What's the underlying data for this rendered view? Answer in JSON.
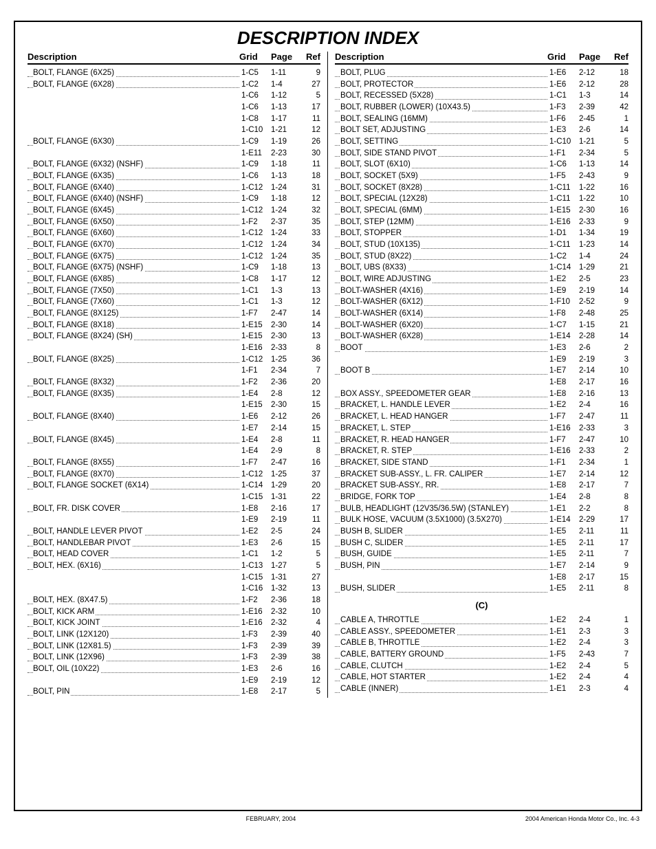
{
  "title": "DESCRIPTION INDEX",
  "headers": {
    "desc": "Description",
    "grid": "Grid",
    "page": "Page",
    "ref": "Ref"
  },
  "footer": {
    "center": "FEBRUARY, 2004",
    "right": "2004  American Honda Motor Co., Inc.    4-3"
  },
  "left": [
    {
      "d": "BOLT, FLANGE (6X25)",
      "g": "1-C5",
      "p": "1-11",
      "r": "9"
    },
    {
      "d": "BOLT, FLANGE (6X28)",
      "g": "1-C2",
      "p": "1-4",
      "r": "27"
    },
    {
      "d": "",
      "g": "1-C6",
      "p": "1-12",
      "r": "5"
    },
    {
      "d": "",
      "g": "1-C6",
      "p": "1-13",
      "r": "17"
    },
    {
      "d": "",
      "g": "1-C8",
      "p": "1-17",
      "r": "11"
    },
    {
      "d": "",
      "g": "1-C10",
      "p": "1-21",
      "r": "12"
    },
    {
      "d": "BOLT, FLANGE (6X30)",
      "g": "1-C9",
      "p": "1-19",
      "r": "26"
    },
    {
      "d": "",
      "g": "1-E11",
      "p": "2-23",
      "r": "30"
    },
    {
      "d": "BOLT, FLANGE (6X32) (NSHF)",
      "g": "1-C9",
      "p": "1-18",
      "r": "11"
    },
    {
      "d": "BOLT, FLANGE (6X35)",
      "g": "1-C6",
      "p": "1-13",
      "r": "18"
    },
    {
      "d": "BOLT, FLANGE (6X40)",
      "g": "1-C12",
      "p": "1-24",
      "r": "31"
    },
    {
      "d": "BOLT, FLANGE (6X40) (NSHF)",
      "g": "1-C9",
      "p": "1-18",
      "r": "12"
    },
    {
      "d": "BOLT, FLANGE (6X45)",
      "g": "1-C12",
      "p": "1-24",
      "r": "32"
    },
    {
      "d": "BOLT, FLANGE (6X50)",
      "g": "1-F2",
      "p": "2-37",
      "r": "35"
    },
    {
      "d": "BOLT, FLANGE (6X60)",
      "g": "1-C12",
      "p": "1-24",
      "r": "33"
    },
    {
      "d": "BOLT, FLANGE (6X70)",
      "g": "1-C12",
      "p": "1-24",
      "r": "34"
    },
    {
      "d": "BOLT, FLANGE (6X75)",
      "g": "1-C12",
      "p": "1-24",
      "r": "35"
    },
    {
      "d": "BOLT, FLANGE (6X75) (NSHF)",
      "g": "1-C9",
      "p": "1-18",
      "r": "13"
    },
    {
      "d": "BOLT, FLANGE (6X85)",
      "g": "1-C8",
      "p": "1-17",
      "r": "12"
    },
    {
      "d": "BOLT, FLANGE (7X50)",
      "g": "1-C1",
      "p": "1-3",
      "r": "13"
    },
    {
      "d": "BOLT, FLANGE (7X60)",
      "g": "1-C1",
      "p": "1-3",
      "r": "12"
    },
    {
      "d": "BOLT, FLANGE (8X125)",
      "g": "1-F7",
      "p": "2-47",
      "r": "14"
    },
    {
      "d": "BOLT, FLANGE (8X18)",
      "g": "1-E15",
      "p": "2-30",
      "r": "14"
    },
    {
      "d": "BOLT, FLANGE (8X24) (SH)",
      "g": "1-E15",
      "p": "2-30",
      "r": "13"
    },
    {
      "d": "",
      "g": "1-E16",
      "p": "2-33",
      "r": "8"
    },
    {
      "d": "BOLT, FLANGE (8X25)",
      "g": "1-C12",
      "p": "1-25",
      "r": "36"
    },
    {
      "d": "",
      "g": "1-F1",
      "p": "2-34",
      "r": "7"
    },
    {
      "d": "BOLT, FLANGE (8X32)",
      "g": "1-F2",
      "p": "2-36",
      "r": "20"
    },
    {
      "d": "BOLT, FLANGE (8X35)",
      "g": "1-E4",
      "p": "2-8",
      "r": "12"
    },
    {
      "d": "",
      "g": "1-E15",
      "p": "2-30",
      "r": "15"
    },
    {
      "d": "BOLT, FLANGE (8X40)",
      "g": "1-E6",
      "p": "2-12",
      "r": "26"
    },
    {
      "d": "",
      "g": "1-E7",
      "p": "2-14",
      "r": "15"
    },
    {
      "d": "BOLT, FLANGE (8X45)",
      "g": "1-E4",
      "p": "2-8",
      "r": "11"
    },
    {
      "d": "",
      "g": "1-E4",
      "p": "2-9",
      "r": "8"
    },
    {
      "d": "BOLT, FLANGE (8X55)",
      "g": "1-F7",
      "p": "2-47",
      "r": "16"
    },
    {
      "d": "BOLT, FLANGE (8X70)",
      "g": "1-C12",
      "p": "1-25",
      "r": "37"
    },
    {
      "d": "BOLT, FLANGE SOCKET (6X14)",
      "g": "1-C14",
      "p": "1-29",
      "r": "20"
    },
    {
      "d": "",
      "g": "1-C15",
      "p": "1-31",
      "r": "22"
    },
    {
      "d": "BOLT, FR. DISK COVER",
      "g": "1-E8",
      "p": "2-16",
      "r": "17"
    },
    {
      "d": "",
      "g": "1-E9",
      "p": "2-19",
      "r": "11"
    },
    {
      "d": "BOLT, HANDLE LEVER PIVOT",
      "g": "1-E2",
      "p": "2-5",
      "r": "24"
    },
    {
      "d": "BOLT, HANDLEBAR PIVOT",
      "g": "1-E3",
      "p": "2-6",
      "r": "15"
    },
    {
      "d": "BOLT, HEAD COVER",
      "g": "1-C1",
      "p": "1-2",
      "r": "5"
    },
    {
      "d": "BOLT, HEX. (6X16)",
      "g": "1-C13",
      "p": "1-27",
      "r": "5"
    },
    {
      "d": "",
      "g": "1-C15",
      "p": "1-31",
      "r": "27"
    },
    {
      "d": "",
      "g": "1-C16",
      "p": "1-32",
      "r": "13"
    },
    {
      "d": "BOLT, HEX. (8X47.5)",
      "g": "1-F2",
      "p": "2-36",
      "r": "18"
    },
    {
      "d": "BOLT, KICK ARM",
      "g": "1-E16",
      "p": "2-32",
      "r": "10"
    },
    {
      "d": "BOLT, KICK JOINT",
      "g": "1-E16",
      "p": "2-32",
      "r": "4"
    },
    {
      "d": "BOLT, LINK (12X120)",
      "g": "1-F3",
      "p": "2-39",
      "r": "40"
    },
    {
      "d": "BOLT, LINK (12X81.5)",
      "g": "1-F3",
      "p": "2-39",
      "r": "39"
    },
    {
      "d": "BOLT, LINK (12X96)",
      "g": "1-F3",
      "p": "2-39",
      "r": "38"
    },
    {
      "d": "BOLT, OIL (10X22)",
      "g": "1-E3",
      "p": "2-6",
      "r": "16"
    },
    {
      "d": "",
      "g": "1-E9",
      "p": "2-19",
      "r": "12"
    },
    {
      "d": "BOLT, PIN",
      "g": "1-E8",
      "p": "2-17",
      "r": "5"
    }
  ],
  "right": [
    {
      "d": "BOLT, PLUG",
      "g": "1-E6",
      "p": "2-12",
      "r": "18"
    },
    {
      "d": "BOLT, PROTECTOR",
      "g": "1-E6",
      "p": "2-12",
      "r": "28"
    },
    {
      "d": "BOLT, RECESSED (5X28)",
      "g": "1-C1",
      "p": "1-3",
      "r": "14"
    },
    {
      "d": "BOLT, RUBBER (LOWER) (10X43.5)",
      "g": "1-F3",
      "p": "2-39",
      "r": "42"
    },
    {
      "d": "BOLT, SEALING (16MM)",
      "g": "1-F6",
      "p": "2-45",
      "r": "1"
    },
    {
      "d": "BOLT SET, ADJUSTING",
      "g": "1-E3",
      "p": "2-6",
      "r": "14"
    },
    {
      "d": "BOLT, SETTING",
      "g": "1-C10",
      "p": "1-21",
      "r": "5"
    },
    {
      "d": "BOLT, SIDE STAND PIVOT",
      "g": "1-F1",
      "p": "2-34",
      "r": "5"
    },
    {
      "d": "BOLT, SLOT (6X10)",
      "g": "1-C6",
      "p": "1-13",
      "r": "14"
    },
    {
      "d": "BOLT, SOCKET (5X9)",
      "g": "1-F5",
      "p": "2-43",
      "r": "9"
    },
    {
      "d": "BOLT, SOCKET (8X28)",
      "g": "1-C11",
      "p": "1-22",
      "r": "16"
    },
    {
      "d": "BOLT, SPECIAL (12X28)",
      "g": "1-C11",
      "p": "1-22",
      "r": "10"
    },
    {
      "d": "BOLT, SPECIAL (6MM)",
      "g": "1-E15",
      "p": "2-30",
      "r": "16"
    },
    {
      "d": "BOLT, STEP (12MM)",
      "g": "1-E16",
      "p": "2-33",
      "r": "9"
    },
    {
      "d": "BOLT, STOPPER",
      "g": "1-D1",
      "p": "1-34",
      "r": "19"
    },
    {
      "d": "BOLT, STUD (10X135)",
      "g": "1-C11",
      "p": "1-23",
      "r": "14"
    },
    {
      "d": "BOLT, STUD (8X22)",
      "g": "1-C2",
      "p": "1-4",
      "r": "24"
    },
    {
      "d": "BOLT, UBS (8X33)",
      "g": "1-C14",
      "p": "1-29",
      "r": "21"
    },
    {
      "d": "BOLT, WIRE ADJUSTING",
      "g": "1-E2",
      "p": "2-5",
      "r": "23"
    },
    {
      "d": "BOLT-WASHER (4X16)",
      "g": "1-E9",
      "p": "2-19",
      "r": "14"
    },
    {
      "d": "BOLT-WASHER (6X12)",
      "g": "1-F10",
      "p": "2-52",
      "r": "9"
    },
    {
      "d": "BOLT-WASHER (6X14)",
      "g": "1-F8",
      "p": "2-48",
      "r": "25"
    },
    {
      "d": "BOLT-WASHER (6X20)",
      "g": "1-C7",
      "p": "1-15",
      "r": "21"
    },
    {
      "d": "BOLT-WASHER (6X28)",
      "g": "1-E14",
      "p": "2-28",
      "r": "14"
    },
    {
      "d": "BOOT",
      "g": "1-E3",
      "p": "2-6",
      "r": "2"
    },
    {
      "d": "",
      "g": "1-E9",
      "p": "2-19",
      "r": "3"
    },
    {
      "d": "BOOT B",
      "g": "1-E7",
      "p": "2-14",
      "r": "10"
    },
    {
      "d": "",
      "g": "1-E8",
      "p": "2-17",
      "r": "16"
    },
    {
      "d": "BOX ASSY., SPEEDOMETER GEAR",
      "g": "1-E8",
      "p": "2-16",
      "r": "13"
    },
    {
      "d": "BRACKET, L. HANDLE LEVER",
      "g": "1-E2",
      "p": "2-4",
      "r": "16"
    },
    {
      "d": "BRACKET, L. HEAD HANGER",
      "g": "1-F7",
      "p": "2-47",
      "r": "11"
    },
    {
      "d": "BRACKET, L. STEP",
      "g": "1-E16",
      "p": "2-33",
      "r": "3"
    },
    {
      "d": "BRACKET, R. HEAD HANGER",
      "g": "1-F7",
      "p": "2-47",
      "r": "10"
    },
    {
      "d": "BRACKET, R. STEP",
      "g": "1-E16",
      "p": "2-33",
      "r": "2"
    },
    {
      "d": "BRACKET, SIDE STAND",
      "g": "1-F1",
      "p": "2-34",
      "r": "1"
    },
    {
      "d": "BRACKET SUB-ASSY., L. FR. CALIPER",
      "g": "1-E7",
      "p": "2-14",
      "r": "12"
    },
    {
      "d": "BRACKET SUB-ASSY., RR.",
      "g": "1-E8",
      "p": "2-17",
      "r": "7"
    },
    {
      "d": "BRIDGE, FORK TOP",
      "g": "1-E4",
      "p": "2-8",
      "r": "8"
    },
    {
      "d": "BULB, HEADLIGHT (12V35/36.5W) (STANLEY)",
      "g": "1-E1",
      "p": "2-2",
      "r": "8"
    },
    {
      "d": "BULK HOSE, VACUUM (3.5X1000) (3.5X270)",
      "g": "1-E14",
      "p": "2-29",
      "r": "17"
    },
    {
      "d": "BUSH B, SLIDER",
      "g": "1-E5",
      "p": "2-11",
      "r": "11"
    },
    {
      "d": "BUSH C, SLIDER",
      "g": "1-E5",
      "p": "2-11",
      "r": "17"
    },
    {
      "d": "BUSH, GUIDE",
      "g": "1-E5",
      "p": "2-11",
      "r": "7"
    },
    {
      "d": "BUSH, PIN",
      "g": "1-E7",
      "p": "2-14",
      "r": "9"
    },
    {
      "d": "",
      "g": "1-E8",
      "p": "2-17",
      "r": "15"
    },
    {
      "d": "BUSH, SLIDER",
      "g": "1-E5",
      "p": "2-11",
      "r": "8"
    },
    {
      "section": "(C)"
    },
    {
      "d": "CABLE A, THROTTLE",
      "g": "1-E2",
      "p": "2-4",
      "r": "1"
    },
    {
      "d": "CABLE ASSY., SPEEDOMETER",
      "g": "1-E1",
      "p": "2-3",
      "r": "3"
    },
    {
      "d": "CABLE B, THROTTLE",
      "g": "1-E2",
      "p": "2-4",
      "r": "3"
    },
    {
      "d": "CABLE, BATTERY GROUND",
      "g": "1-F5",
      "p": "2-43",
      "r": "7"
    },
    {
      "d": "CABLE, CLUTCH",
      "g": "1-E2",
      "p": "2-4",
      "r": "5"
    },
    {
      "d": "CABLE, HOT STARTER",
      "g": "1-E2",
      "p": "2-4",
      "r": "4"
    },
    {
      "d": "CABLE (INNER)",
      "g": "1-E1",
      "p": "2-3",
      "r": "4"
    }
  ]
}
